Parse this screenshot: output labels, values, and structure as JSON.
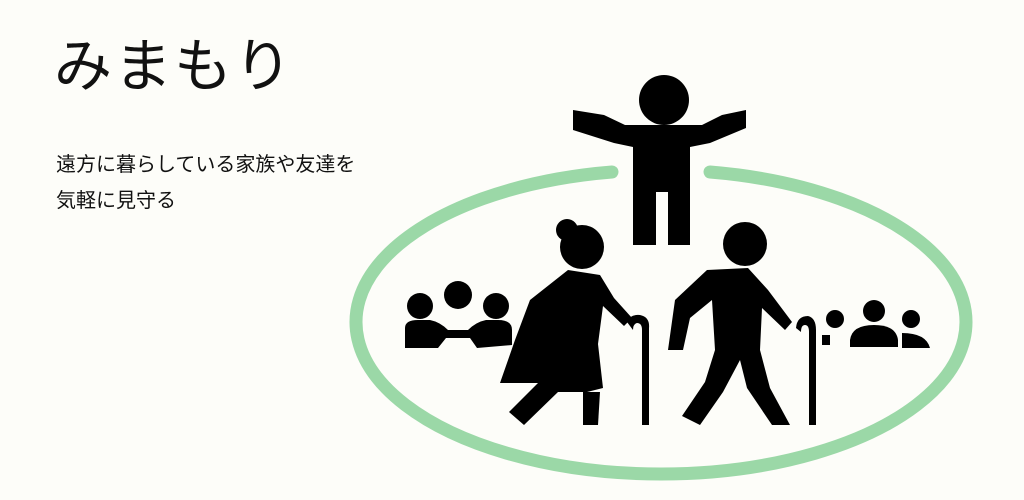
{
  "header": {
    "title": "みまもり"
  },
  "description": {
    "line1": "遠方に暮らしている家族や友達を",
    "line2": "気軽に見守る"
  },
  "illustration": {
    "ring_color": "#9bd8a7",
    "figure_color": "#000000",
    "icons": [
      "person-arms-out-icon",
      "elderly-woman-cane-icon",
      "elderly-man-cane-icon",
      "group-left-icon",
      "group-right-icon"
    ]
  }
}
